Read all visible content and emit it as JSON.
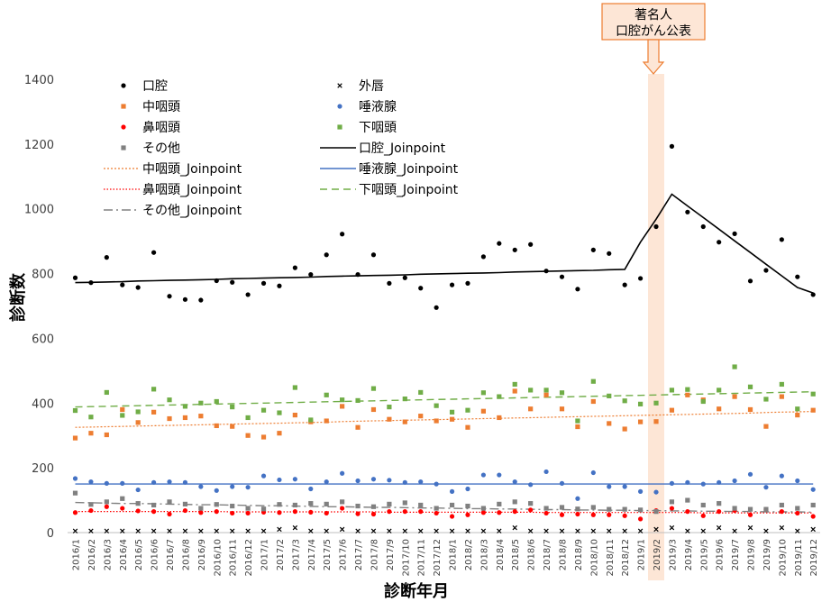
{
  "chart_data": {
    "type": "scatter",
    "title": "",
    "xlabel": "診断年月",
    "ylabel": "診断数",
    "ylim": [
      0,
      1400
    ],
    "yticks": [
      "0",
      "200",
      "400",
      "600",
      "800",
      "1000",
      "1200",
      "1400"
    ],
    "grid": "none",
    "legend_position": "top-left",
    "categories": [
      "2016/1",
      "2016/2",
      "2016/3",
      "2016/4",
      "2016/5",
      "2016/6",
      "2016/7",
      "2016/8",
      "2016/9",
      "2016/10",
      "2016/11",
      "2016/12",
      "2017/1",
      "2017/2",
      "2017/3",
      "2017/4",
      "2017/5",
      "2017/6",
      "2017/7",
      "2017/8",
      "2017/9",
      "2017/10",
      "2017/11",
      "2017/12",
      "2018/1",
      "2018/2",
      "2018/3",
      "2018/4",
      "2018/5",
      "2018/6",
      "2018/7",
      "2018/8",
      "2018/9",
      "2018/10",
      "2018/11",
      "2018/12",
      "2019/1",
      "2019/2",
      "2019/3",
      "2019/4",
      "2019/5",
      "2019/6",
      "2019/7",
      "2019/8",
      "2019/9",
      "2019/10",
      "2019/11",
      "2019/12"
    ],
    "annotation": {
      "line1": "著名人",
      "line2": "口腔がん公表",
      "category": "2019/2",
      "fill": "#fde6d6",
      "border": "#ed7d31"
    },
    "series": [
      {
        "name": "口腔",
        "kind": "marker",
        "marker": "dot",
        "color": "#000000",
        "values": [
          787,
          772,
          850,
          765,
          757,
          865,
          730,
          720,
          718,
          778,
          773,
          735,
          770,
          762,
          818,
          797,
          858,
          922,
          797,
          858,
          770,
          787,
          755,
          695,
          765,
          770,
          852,
          893,
          873,
          890,
          808,
          790,
          752,
          873,
          862,
          765,
          785,
          945,
          1193,
          990,
          945,
          897,
          923,
          777,
          810,
          905,
          790,
          735
        ]
      },
      {
        "name": "外唇",
        "kind": "marker",
        "marker": "x",
        "color": "#000000",
        "values": [
          5,
          5,
          5,
          5,
          5,
          5,
          5,
          5,
          5,
          5,
          5,
          5,
          5,
          10,
          15,
          5,
          5,
          10,
          5,
          5,
          5,
          5,
          5,
          5,
          5,
          5,
          5,
          5,
          15,
          5,
          5,
          5,
          5,
          5,
          5,
          5,
          5,
          10,
          15,
          5,
          5,
          15,
          5,
          15,
          5,
          15,
          5,
          10
        ]
      },
      {
        "name": "中咽頭",
        "kind": "marker",
        "marker": "square",
        "color": "#ed7d31",
        "values": [
          292,
          307,
          302,
          380,
          340,
          372,
          352,
          355,
          360,
          330,
          328,
          300,
          295,
          307,
          363,
          342,
          345,
          390,
          325,
          380,
          350,
          342,
          360,
          345,
          350,
          325,
          375,
          355,
          437,
          382,
          425,
          382,
          327,
          405,
          337,
          320,
          342,
          343,
          378,
          425,
          410,
          382,
          420,
          380,
          328,
          420,
          363,
          378
        ]
      },
      {
        "name": "唾液腺",
        "kind": "marker",
        "marker": "dot",
        "color": "#4472c4",
        "values": [
          167,
          157,
          152,
          152,
          132,
          155,
          157,
          155,
          142,
          130,
          142,
          140,
          175,
          163,
          165,
          135,
          157,
          183,
          160,
          165,
          162,
          155,
          157,
          150,
          127,
          135,
          178,
          178,
          157,
          148,
          188,
          152,
          105,
          185,
          142,
          142,
          127,
          125,
          152,
          155,
          150,
          155,
          160,
          180,
          140,
          175,
          160,
          133
        ]
      },
      {
        "name": "鼻咽頭",
        "kind": "marker",
        "marker": "dot",
        "color": "#ff0000",
        "values": [
          62,
          68,
          80,
          75,
          67,
          65,
          57,
          68,
          62,
          65,
          60,
          60,
          63,
          62,
          65,
          63,
          60,
          75,
          58,
          57,
          65,
          65,
          65,
          60,
          50,
          55,
          62,
          62,
          65,
          70,
          60,
          55,
          57,
          55,
          55,
          52,
          42,
          68,
          75,
          65,
          52,
          65,
          68,
          55,
          72,
          65,
          60,
          50
        ]
      },
      {
        "name": "下咽頭",
        "kind": "marker",
        "marker": "square",
        "color": "#70ad47",
        "values": [
          377,
          357,
          433,
          362,
          373,
          443,
          410,
          390,
          400,
          405,
          388,
          355,
          378,
          370,
          448,
          348,
          425,
          410,
          408,
          445,
          388,
          413,
          433,
          392,
          372,
          378,
          432,
          420,
          458,
          440,
          440,
          432,
          345,
          467,
          422,
          407,
          397,
          400,
          440,
          442,
          405,
          440,
          512,
          450,
          412,
          458,
          382,
          428
        ]
      },
      {
        "name": "その他",
        "kind": "marker",
        "marker": "square",
        "color": "#808080",
        "values": [
          122,
          87,
          95,
          105,
          90,
          85,
          95,
          88,
          75,
          87,
          82,
          75,
          73,
          87,
          85,
          90,
          88,
          95,
          82,
          80,
          88,
          92,
          85,
          75,
          85,
          82,
          75,
          88,
          95,
          90,
          75,
          78,
          73,
          78,
          72,
          72,
          70,
          65,
          95,
          100,
          85,
          90,
          75,
          72,
          72,
          85,
          75,
          85
        ]
      },
      {
        "name": "口腔_Joinpoint",
        "kind": "line",
        "style": "solid",
        "color": "#000000",
        "width": 1.6,
        "values": [
          772,
          773,
          774,
          775,
          777,
          778,
          779,
          780,
          781,
          782,
          784,
          785,
          786,
          787,
          788,
          789,
          791,
          792,
          793,
          794,
          795,
          796,
          798,
          799,
          800,
          801,
          802,
          803,
          805,
          806,
          807,
          808,
          809,
          810,
          812,
          813,
          897,
          968,
          1045,
          1009,
          973,
          937,
          901,
          865,
          829,
          793,
          757,
          740
        ]
      },
      {
        "name": "中咽頭_Joinpoint",
        "kind": "line",
        "style": "dotted-dense",
        "color": "#ed7d31",
        "width": 1.2,
        "values": [
          325,
          326,
          327,
          328,
          329,
          330,
          331,
          332,
          333,
          334,
          335,
          336,
          337,
          338,
          339,
          340,
          341,
          343,
          344,
          345,
          346,
          347,
          348,
          349,
          350,
          351,
          352,
          353,
          354,
          355,
          356,
          357,
          358,
          359,
          360,
          361,
          362,
          363,
          364,
          365,
          366,
          367,
          368,
          369,
          371,
          372,
          373,
          374
        ]
      },
      {
        "name": "唾液腺_Joinpoint",
        "kind": "line",
        "style": "solid",
        "color": "#4472c4",
        "width": 1.4,
        "values": [
          150,
          150,
          150,
          150,
          150,
          150,
          150,
          150,
          150,
          150,
          150,
          150,
          150,
          150,
          150,
          150,
          150,
          150,
          150,
          150,
          150,
          150,
          150,
          150,
          150,
          150,
          150,
          150,
          150,
          150,
          150,
          150,
          150,
          150,
          150,
          150,
          150,
          150,
          150,
          150,
          150,
          150,
          150,
          150,
          150,
          150,
          150,
          150
        ]
      },
      {
        "name": "鼻咽頭_Joinpoint",
        "kind": "line",
        "style": "dotted",
        "color": "#ff0000",
        "width": 1.2,
        "values": [
          65,
          65,
          65,
          65,
          65,
          65,
          65,
          65,
          65,
          65,
          64,
          64,
          64,
          64,
          64,
          64,
          64,
          64,
          64,
          64,
          63,
          63,
          63,
          63,
          63,
          63,
          63,
          63,
          63,
          63,
          62,
          62,
          62,
          62,
          62,
          62,
          62,
          62,
          62,
          62,
          61,
          61,
          61,
          61,
          61,
          61,
          61,
          61
        ]
      },
      {
        "name": "下咽頭_Joinpoint",
        "kind": "line",
        "style": "dashed",
        "color": "#70ad47",
        "width": 1.4,
        "values": [
          388,
          389,
          390,
          391,
          392,
          393,
          394,
          395,
          396,
          397,
          398,
          399,
          400,
          401,
          402,
          403,
          404,
          405,
          406,
          407,
          408,
          409,
          410,
          411,
          412,
          413,
          414,
          415,
          416,
          417,
          418,
          419,
          420,
          421,
          422,
          423,
          424,
          425,
          426,
          427,
          428,
          429,
          430,
          431,
          432,
          433,
          434,
          435
        ]
      },
      {
        "name": "その他_Joinpoint",
        "kind": "line",
        "style": "dashdot",
        "color": "#808080",
        "width": 1.4,
        "values": [
          93,
          92,
          91,
          90,
          90,
          89,
          88,
          87,
          86,
          86,
          85,
          84,
          83,
          83,
          82,
          81,
          80,
          80,
          79,
          78,
          78,
          77,
          76,
          76,
          75,
          74,
          74,
          73,
          73,
          72,
          71,
          71,
          70,
          70,
          69,
          69,
          68,
          68,
          67,
          67,
          66,
          66,
          65,
          65,
          64,
          64,
          64,
          63
        ]
      }
    ]
  }
}
